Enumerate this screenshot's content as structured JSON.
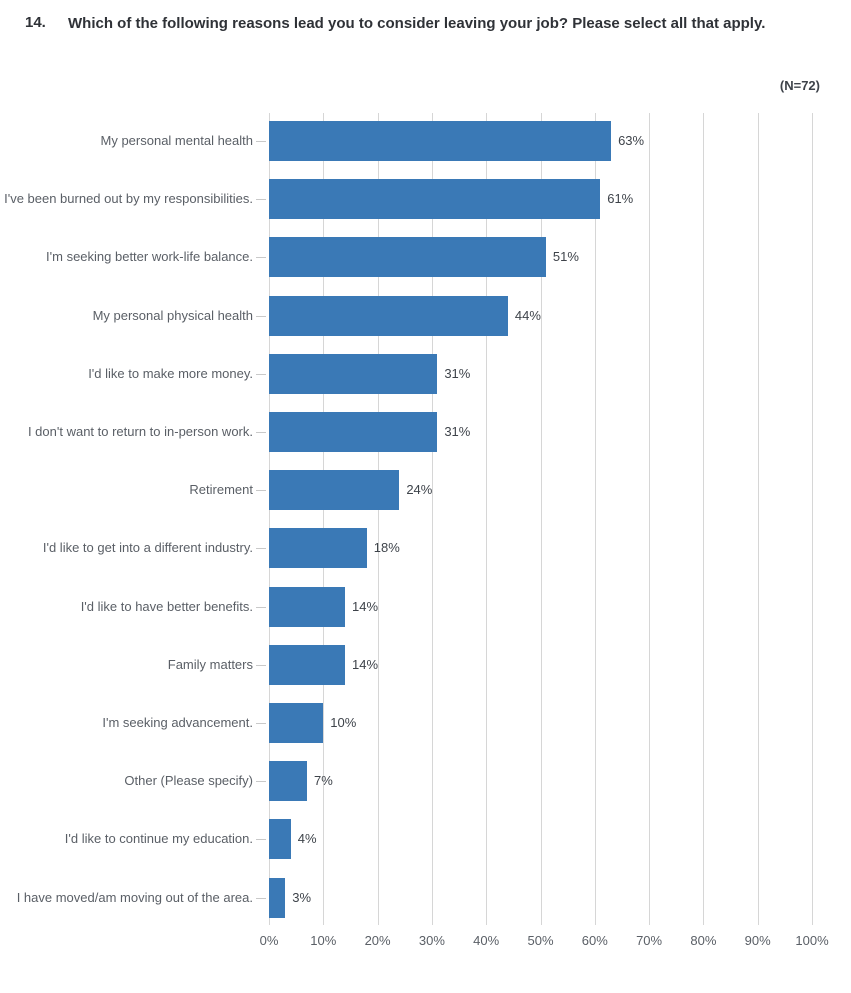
{
  "question": {
    "number": "14.",
    "text": "Which of the following reasons lead you to consider leaving your job? Please select all that apply."
  },
  "chart_data": {
    "type": "bar",
    "orientation": "horizontal",
    "n_label": "(N=72)",
    "categories": [
      "My personal mental health",
      "I've been burned out by my responsibilities.",
      "I'm seeking better work-life balance.",
      "My personal physical health",
      "I'd like to make more money.",
      "I don't want to return to in-person work.",
      "Retirement",
      "I'd like to get into a different industry.",
      "I'd like to have better benefits.",
      "Family matters",
      "I'm seeking advancement.",
      "Other (Please specify)",
      "I'd like to continue my education.",
      "I have moved/am moving out of the area."
    ],
    "values": [
      63,
      61,
      51,
      44,
      31,
      31,
      24,
      18,
      14,
      14,
      10,
      7,
      4,
      3
    ],
    "value_labels": [
      "63%",
      "61%",
      "51%",
      "44%",
      "31%",
      "31%",
      "24%",
      "18%",
      "14%",
      "14%",
      "10%",
      "7%",
      "4%",
      "3%"
    ],
    "xlim": [
      0,
      100
    ],
    "x_ticks": [
      0,
      10,
      20,
      30,
      40,
      50,
      60,
      70,
      80,
      90,
      100
    ],
    "x_tick_labels": [
      "0%",
      "10%",
      "20%",
      "30%",
      "40%",
      "50%",
      "60%",
      "70%",
      "80%",
      "90%",
      "100%"
    ],
    "grid": true,
    "legend": null,
    "bar_color": "#3A79B6",
    "gridline_color": "#D6D6D6"
  }
}
